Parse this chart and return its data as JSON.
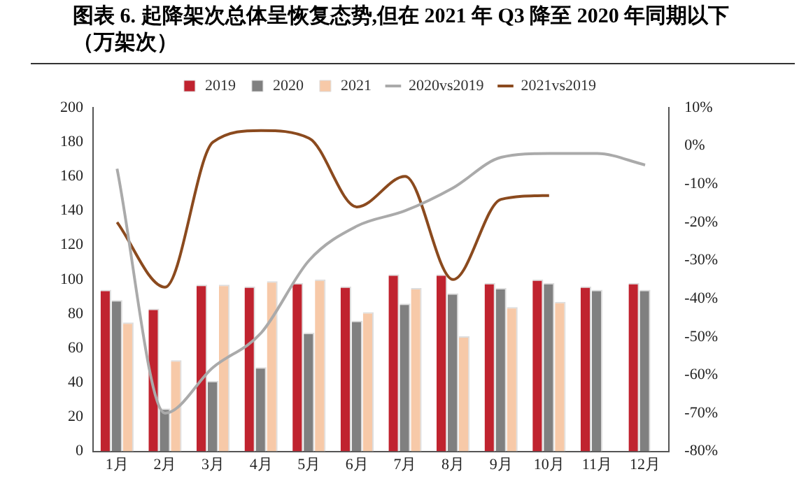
{
  "chart_data": {
    "type": "bar",
    "title": "图表 6.  起降架次总体呈恢复态势,但在 2021 年 Q3 降至 2020 年同期以下（万架次）",
    "categories": [
      "1月",
      "2月",
      "3月",
      "4月",
      "5月",
      "6月",
      "7月",
      "8月",
      "9月",
      "10月",
      "11月",
      "12月"
    ],
    "series": [
      {
        "name": "2019",
        "color": "#c0232f",
        "values": [
          94,
          83,
          97,
          96,
          98,
          96,
          103,
          103,
          98,
          100,
          96,
          98
        ]
      },
      {
        "name": "2020",
        "color": "#808080",
        "values": [
          88,
          25,
          41,
          49,
          69,
          76,
          86,
          92,
          95,
          98,
          94,
          94
        ]
      },
      {
        "name": "2021",
        "color": "#f7c9a8",
        "values": [
          75,
          53,
          97,
          99,
          100,
          81,
          95,
          67,
          84,
          87,
          null,
          null
        ]
      },
      {
        "name": "2020vs2019",
        "type": "line",
        "axis": "y2",
        "color": "#aaaaaa",
        "values": [
          -6,
          -70,
          -58,
          -49,
          -30,
          -21,
          -17,
          -11,
          -3,
          -2,
          -2,
          -5
        ]
      },
      {
        "name": "2021vs2019",
        "type": "line",
        "axis": "y2",
        "color": "#8b4a1e",
        "values": [
          -20,
          -37,
          1,
          4,
          2,
          -16,
          -8,
          -35,
          -14,
          -13,
          null,
          null
        ]
      }
    ],
    "ylim": [
      0,
      200
    ],
    "yticks": [
      0,
      20,
      40,
      60,
      80,
      100,
      120,
      140,
      160,
      180,
      200
    ],
    "y2lim": [
      -80,
      10
    ],
    "y2ticks": [
      {
        "value": 10,
        "label": "10%"
      },
      {
        "value": 0,
        "label": "0%"
      },
      {
        "value": -10,
        "label": "-10%"
      },
      {
        "value": -20,
        "label": "-20%"
      },
      {
        "value": -30,
        "label": "-30%"
      },
      {
        "value": -40,
        "label": "-40%"
      },
      {
        "value": -50,
        "label": "-50%"
      },
      {
        "value": -60,
        "label": "-60%"
      },
      {
        "value": -70,
        "label": "-70%"
      },
      {
        "value": -80,
        "label": "-80%"
      }
    ],
    "grid": false,
    "legend": "top",
    "marker": "none",
    "line_style": "solid"
  }
}
